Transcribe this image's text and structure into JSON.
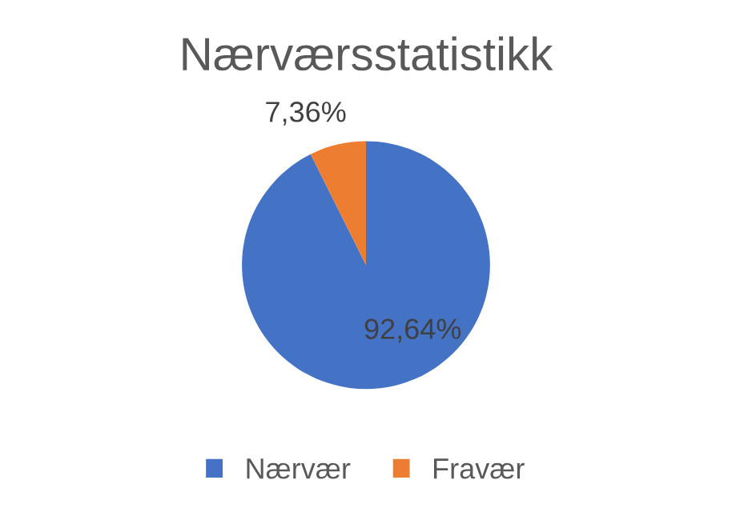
{
  "chart_data": {
    "type": "pie",
    "title": "Nærværsstatistikk",
    "categories": [
      "Nærvær",
      "Fravær"
    ],
    "values": [
      92.64,
      7.36
    ],
    "colors": [
      "#4472c4",
      "#ed7d31"
    ],
    "value_labels": [
      "92,64%",
      "7,36%"
    ],
    "legend": "bottom"
  }
}
